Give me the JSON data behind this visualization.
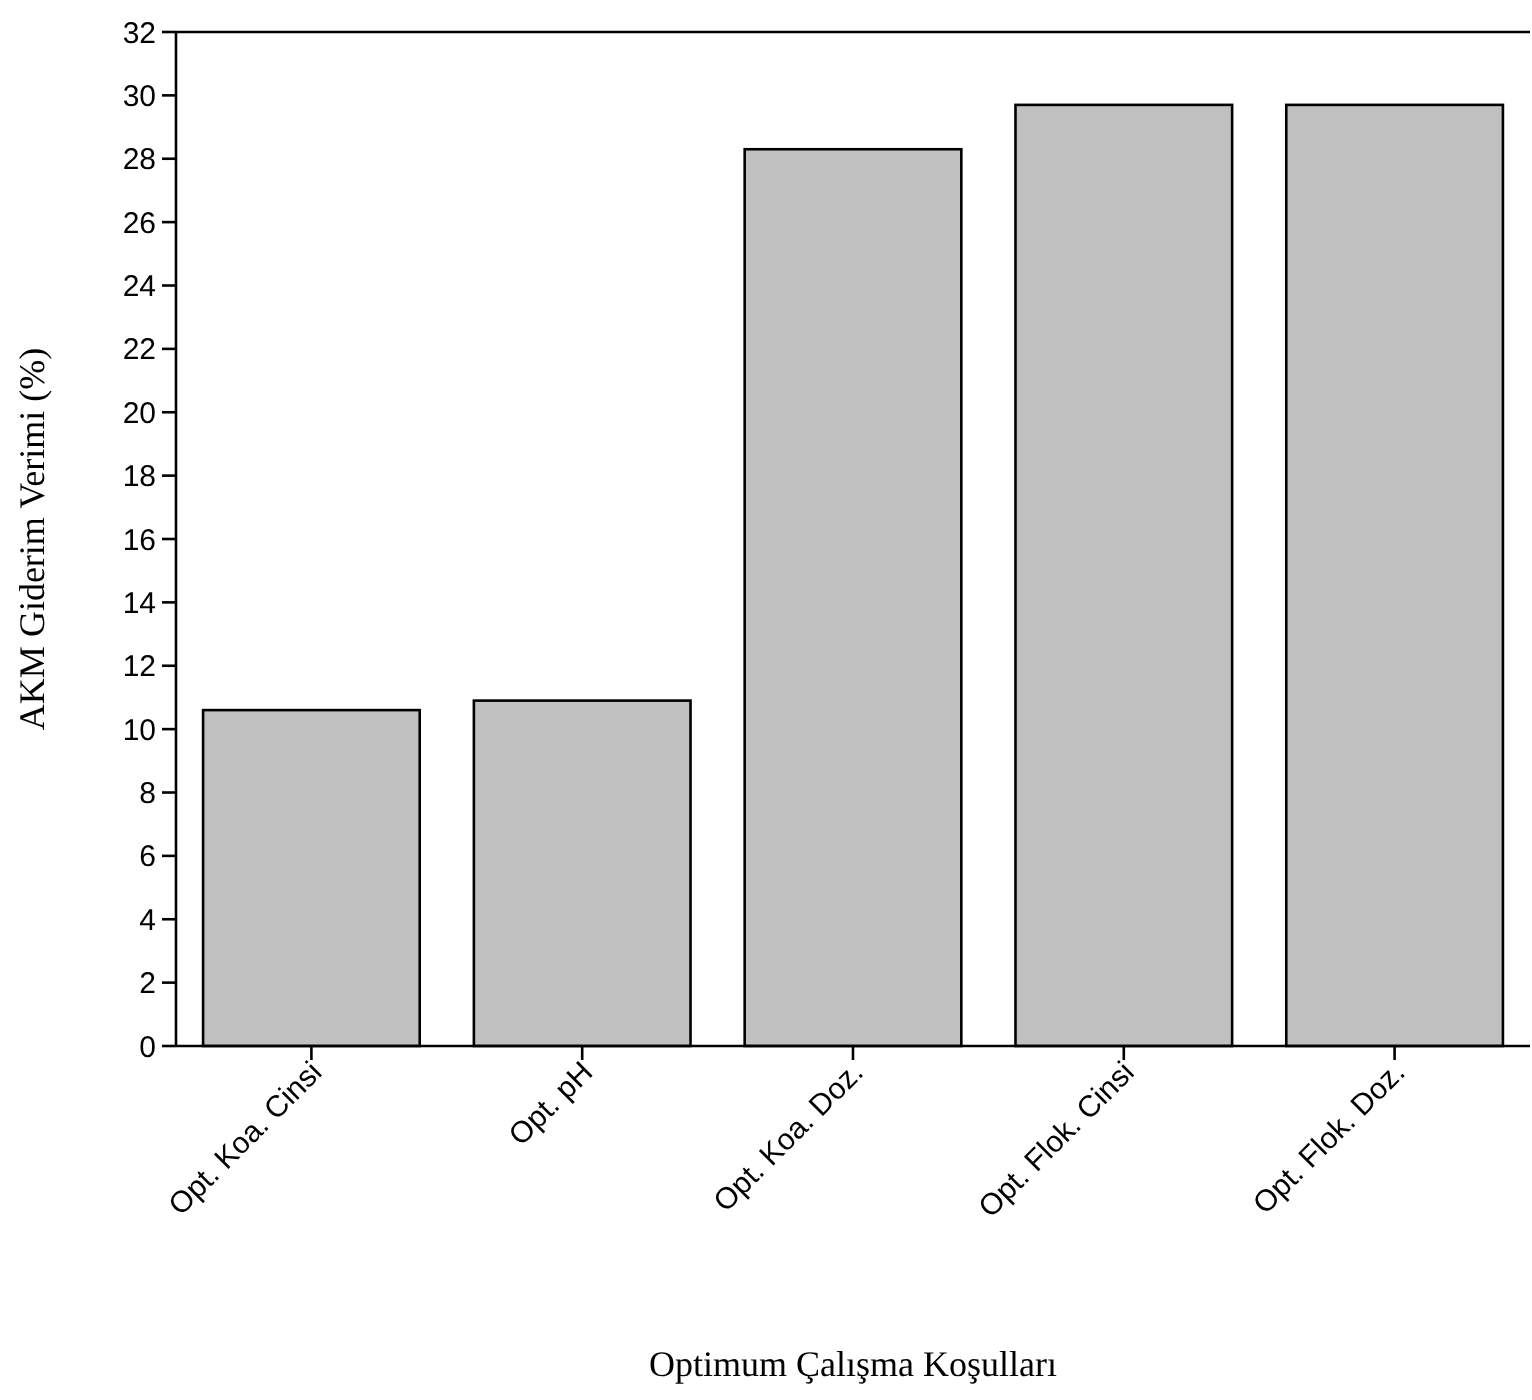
{
  "chart_data": {
    "type": "bar",
    "xlabel": "Optimum Çalışma Koşulları",
    "ylabel": "AKM Giderim Verimi (%)",
    "categories": [
      "Opt. Koa. Cinsi",
      "Opt. pH",
      "Opt. Koa. Doz.",
      "Opt. Flok. Cinsi",
      "Opt. Flok. Doz."
    ],
    "values": [
      10.6,
      10.9,
      28.3,
      29.7,
      29.7
    ],
    "color": "#c0c0c0",
    "ylim": [
      0,
      32
    ],
    "yticks": [
      0,
      2,
      4,
      6,
      8,
      10,
      12,
      14,
      16,
      18,
      20,
      22,
      24,
      26,
      28,
      30,
      32
    ],
    "grid": false
  }
}
